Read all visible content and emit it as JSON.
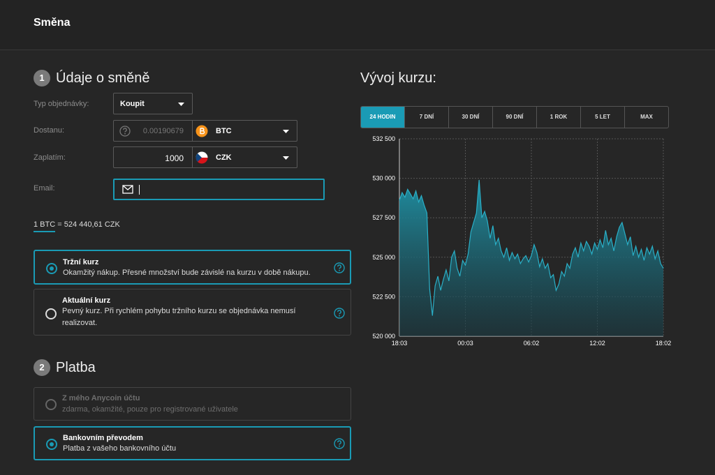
{
  "header": {
    "title": "Směna"
  },
  "order": {
    "step": "1",
    "title": "Údaje o směně",
    "fields": [
      {
        "label": "Typ objednávky:",
        "value": "Koupit"
      },
      {
        "label": "Dostanu:",
        "value": "0.00190679",
        "currency": "BTC"
      },
      {
        "label": "Zaplatím:",
        "value": "1000",
        "currency": "CZK"
      },
      {
        "label": "Email:"
      }
    ],
    "rate": "1 BTC = 524 440,61 CZK",
    "options": [
      {
        "title": "Tržní kurz",
        "text": "Okamžitý nákup. Přesné množství bude závislé na kurzu v době nákupu."
      },
      {
        "title": "Aktuální kurz",
        "text": "Pevný kurz. Při rychlém pohybu tržního kurzu se objednávka nemusí realizovat."
      }
    ]
  },
  "payment": {
    "step": "2",
    "title": "Platba",
    "options": [
      {
        "title": "Z mého Anycoin účtu",
        "text": "zdarma, okamžité, pouze pro registrované uživatele"
      },
      {
        "title": "Bankovním převodem",
        "text": "Platba z vašeho bankovního účtu"
      }
    ]
  },
  "periods": [
    "24 HODIN",
    "7 DNÍ",
    "30 DNÍ",
    "90 DNÍ",
    "1 ROK",
    "5 LET",
    "MAX"
  ],
  "chart_data": {
    "type": "area",
    "title": "Vývoj kurzu:",
    "color": "#2ab0c8",
    "categories": [
      "18:03",
      null,
      null,
      null,
      null,
      null,
      null,
      null,
      null,
      null,
      null,
      null,
      null,
      null,
      null,
      null,
      null,
      null,
      null,
      null,
      null,
      null,
      null,
      null,
      "00:03",
      null,
      null,
      null,
      null,
      null,
      null,
      null,
      null,
      null,
      null,
      null,
      null,
      null,
      null,
      null,
      null,
      null,
      null,
      null,
      null,
      null,
      null,
      null,
      "06:02",
      null,
      null,
      null,
      null,
      null,
      null,
      null,
      null,
      null,
      null,
      null,
      null,
      null,
      null,
      null,
      null,
      null,
      null,
      null,
      null,
      null,
      null,
      null,
      "12:02",
      null,
      null,
      null,
      null,
      null,
      null,
      null,
      null,
      null,
      null,
      null,
      null,
      null,
      null,
      null,
      null,
      null,
      null,
      null,
      null,
      null,
      null,
      null,
      "18:02"
    ],
    "values": [
      528600,
      529100,
      528800,
      529300,
      529000,
      528700,
      529200,
      528500,
      528900,
      528300,
      527800,
      523000,
      521300,
      523200,
      523800,
      522900,
      523600,
      524200,
      523500,
      525000,
      525400,
      524300,
      523800,
      524800,
      524500,
      525200,
      526600,
      527200,
      527800,
      529900,
      527500,
      527900,
      527300,
      526200,
      527000,
      525800,
      526200,
      525400,
      525000,
      525600,
      524800,
      525300,
      524900,
      525200,
      524600,
      524900,
      525100,
      524700,
      525100,
      525800,
      525300,
      524400,
      524900,
      524300,
      524600,
      523700,
      523900,
      522900,
      523300,
      524100,
      523800,
      524600,
      524300,
      525200,
      525600,
      525000,
      525900,
      525400,
      526000,
      525700,
      525200,
      525900,
      525500,
      526100,
      525600,
      526700,
      525800,
      526200,
      525400,
      526300,
      526900,
      527200,
      526500,
      525800,
      526300,
      525100,
      525700,
      525000,
      525500,
      524800,
      525600,
      525200,
      525700,
      524900,
      525400,
      524600,
      524300
    ],
    "ylim": [
      520000,
      532500
    ],
    "yticks": [
      {
        "value": 520000,
        "label": "520 000"
      },
      {
        "value": 522500,
        "label": "522 500"
      },
      {
        "value": 525000,
        "label": "525 000"
      },
      {
        "value": 527500,
        "label": "527 500"
      },
      {
        "value": 530000,
        "label": "530 000"
      },
      {
        "value": 532500,
        "label": "532 500"
      }
    ],
    "grid": true
  }
}
